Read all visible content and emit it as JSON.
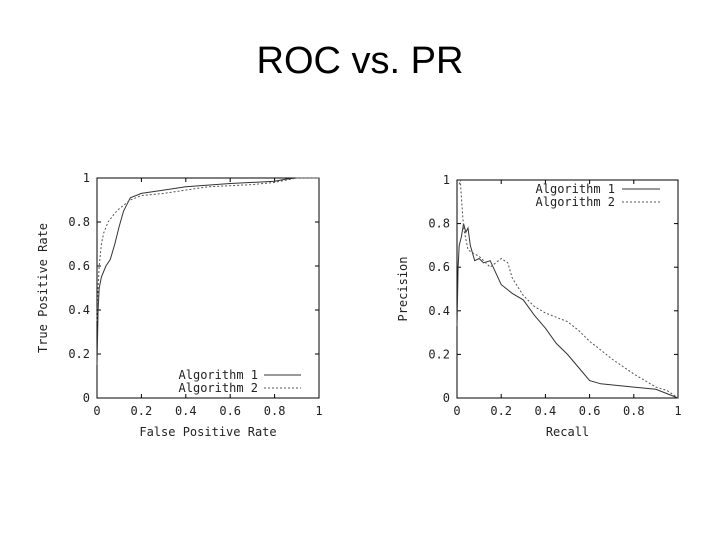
{
  "slide": {
    "title": "ROC vs. PR"
  },
  "chart_data": [
    {
      "type": "line",
      "xlabel": "False Positive Rate",
      "ylabel": "True Positive Rate",
      "xlim": [
        0,
        1
      ],
      "ylim": [
        0,
        1
      ],
      "x_ticks": [
        "0",
        "0.2",
        "0.4",
        "0.6",
        "0.8",
        "1"
      ],
      "y_ticks": [
        "0",
        "0.2",
        "0.4",
        "0.6",
        "0.8",
        "1"
      ],
      "legend_position": "bottom-right",
      "series": [
        {
          "name": "Algorithm 1",
          "style": "solid",
          "points": [
            [
              0,
              0.15
            ],
            [
              0.005,
              0.4
            ],
            [
              0.01,
              0.5
            ],
            [
              0.02,
              0.55
            ],
            [
              0.04,
              0.6
            ],
            [
              0.06,
              0.63
            ],
            [
              0.08,
              0.7
            ],
            [
              0.1,
              0.78
            ],
            [
              0.12,
              0.85
            ],
            [
              0.15,
              0.91
            ],
            [
              0.2,
              0.93
            ],
            [
              0.3,
              0.945
            ],
            [
              0.4,
              0.96
            ],
            [
              0.6,
              0.975
            ],
            [
              0.8,
              0.985
            ],
            [
              0.85,
              0.995
            ],
            [
              0.9,
              1.0
            ],
            [
              1.0,
              1.0
            ]
          ]
        },
        {
          "name": "Algorithm 2",
          "style": "dashed",
          "points": [
            [
              0,
              0.35
            ],
            [
              0.005,
              0.5
            ],
            [
              0.01,
              0.6
            ],
            [
              0.02,
              0.7
            ],
            [
              0.03,
              0.75
            ],
            [
              0.05,
              0.8
            ],
            [
              0.08,
              0.84
            ],
            [
              0.1,
              0.86
            ],
            [
              0.15,
              0.9
            ],
            [
              0.2,
              0.92
            ],
            [
              0.3,
              0.93
            ],
            [
              0.5,
              0.96
            ],
            [
              0.7,
              0.97
            ],
            [
              0.8,
              0.98
            ],
            [
              0.9,
              1.0
            ],
            [
              1.0,
              1.0
            ]
          ]
        }
      ]
    },
    {
      "type": "line",
      "xlabel": "Recall",
      "ylabel": "Precision",
      "xlim": [
        0,
        1
      ],
      "ylim": [
        0,
        1
      ],
      "x_ticks": [
        "0",
        "0.2",
        "0.4",
        "0.6",
        "0.8",
        "1"
      ],
      "y_ticks": [
        "0",
        "0.2",
        "0.4",
        "0.6",
        "0.8",
        "1"
      ],
      "legend_position": "top-right",
      "series": [
        {
          "name": "Algorithm 1",
          "style": "solid",
          "points": [
            [
              0,
              0.33
            ],
            [
              0.005,
              0.6
            ],
            [
              0.01,
              0.7
            ],
            [
              0.02,
              0.74
            ],
            [
              0.03,
              0.8
            ],
            [
              0.04,
              0.76
            ],
            [
              0.05,
              0.78
            ],
            [
              0.06,
              0.7
            ],
            [
              0.08,
              0.63
            ],
            [
              0.1,
              0.64
            ],
            [
              0.12,
              0.62
            ],
            [
              0.15,
              0.63
            ],
            [
              0.2,
              0.52
            ],
            [
              0.25,
              0.48
            ],
            [
              0.3,
              0.45
            ],
            [
              0.35,
              0.38
            ],
            [
              0.4,
              0.32
            ],
            [
              0.45,
              0.25
            ],
            [
              0.5,
              0.2
            ],
            [
              0.55,
              0.14
            ],
            [
              0.6,
              0.08
            ],
            [
              0.65,
              0.065
            ],
            [
              0.7,
              0.06
            ],
            [
              0.8,
              0.05
            ],
            [
              0.9,
              0.04
            ],
            [
              0.95,
              0.02
            ],
            [
              1.0,
              0.0
            ]
          ]
        },
        {
          "name": "Algorithm 2",
          "style": "dashed",
          "points": [
            [
              0.01,
              0.98
            ],
            [
              0.015,
              1.0
            ],
            [
              0.02,
              0.92
            ],
            [
              0.03,
              0.78
            ],
            [
              0.05,
              0.68
            ],
            [
              0.08,
              0.66
            ],
            [
              0.1,
              0.65
            ],
            [
              0.15,
              0.6
            ],
            [
              0.2,
              0.64
            ],
            [
              0.23,
              0.62
            ],
            [
              0.25,
              0.55
            ],
            [
              0.3,
              0.47
            ],
            [
              0.35,
              0.42
            ],
            [
              0.4,
              0.39
            ],
            [
              0.45,
              0.37
            ],
            [
              0.5,
              0.35
            ],
            [
              0.55,
              0.31
            ],
            [
              0.6,
              0.26
            ],
            [
              0.65,
              0.22
            ],
            [
              0.7,
              0.18
            ],
            [
              0.8,
              0.11
            ],
            [
              0.9,
              0.05
            ],
            [
              0.95,
              0.035
            ],
            [
              1.0,
              0.0
            ]
          ]
        }
      ]
    }
  ]
}
